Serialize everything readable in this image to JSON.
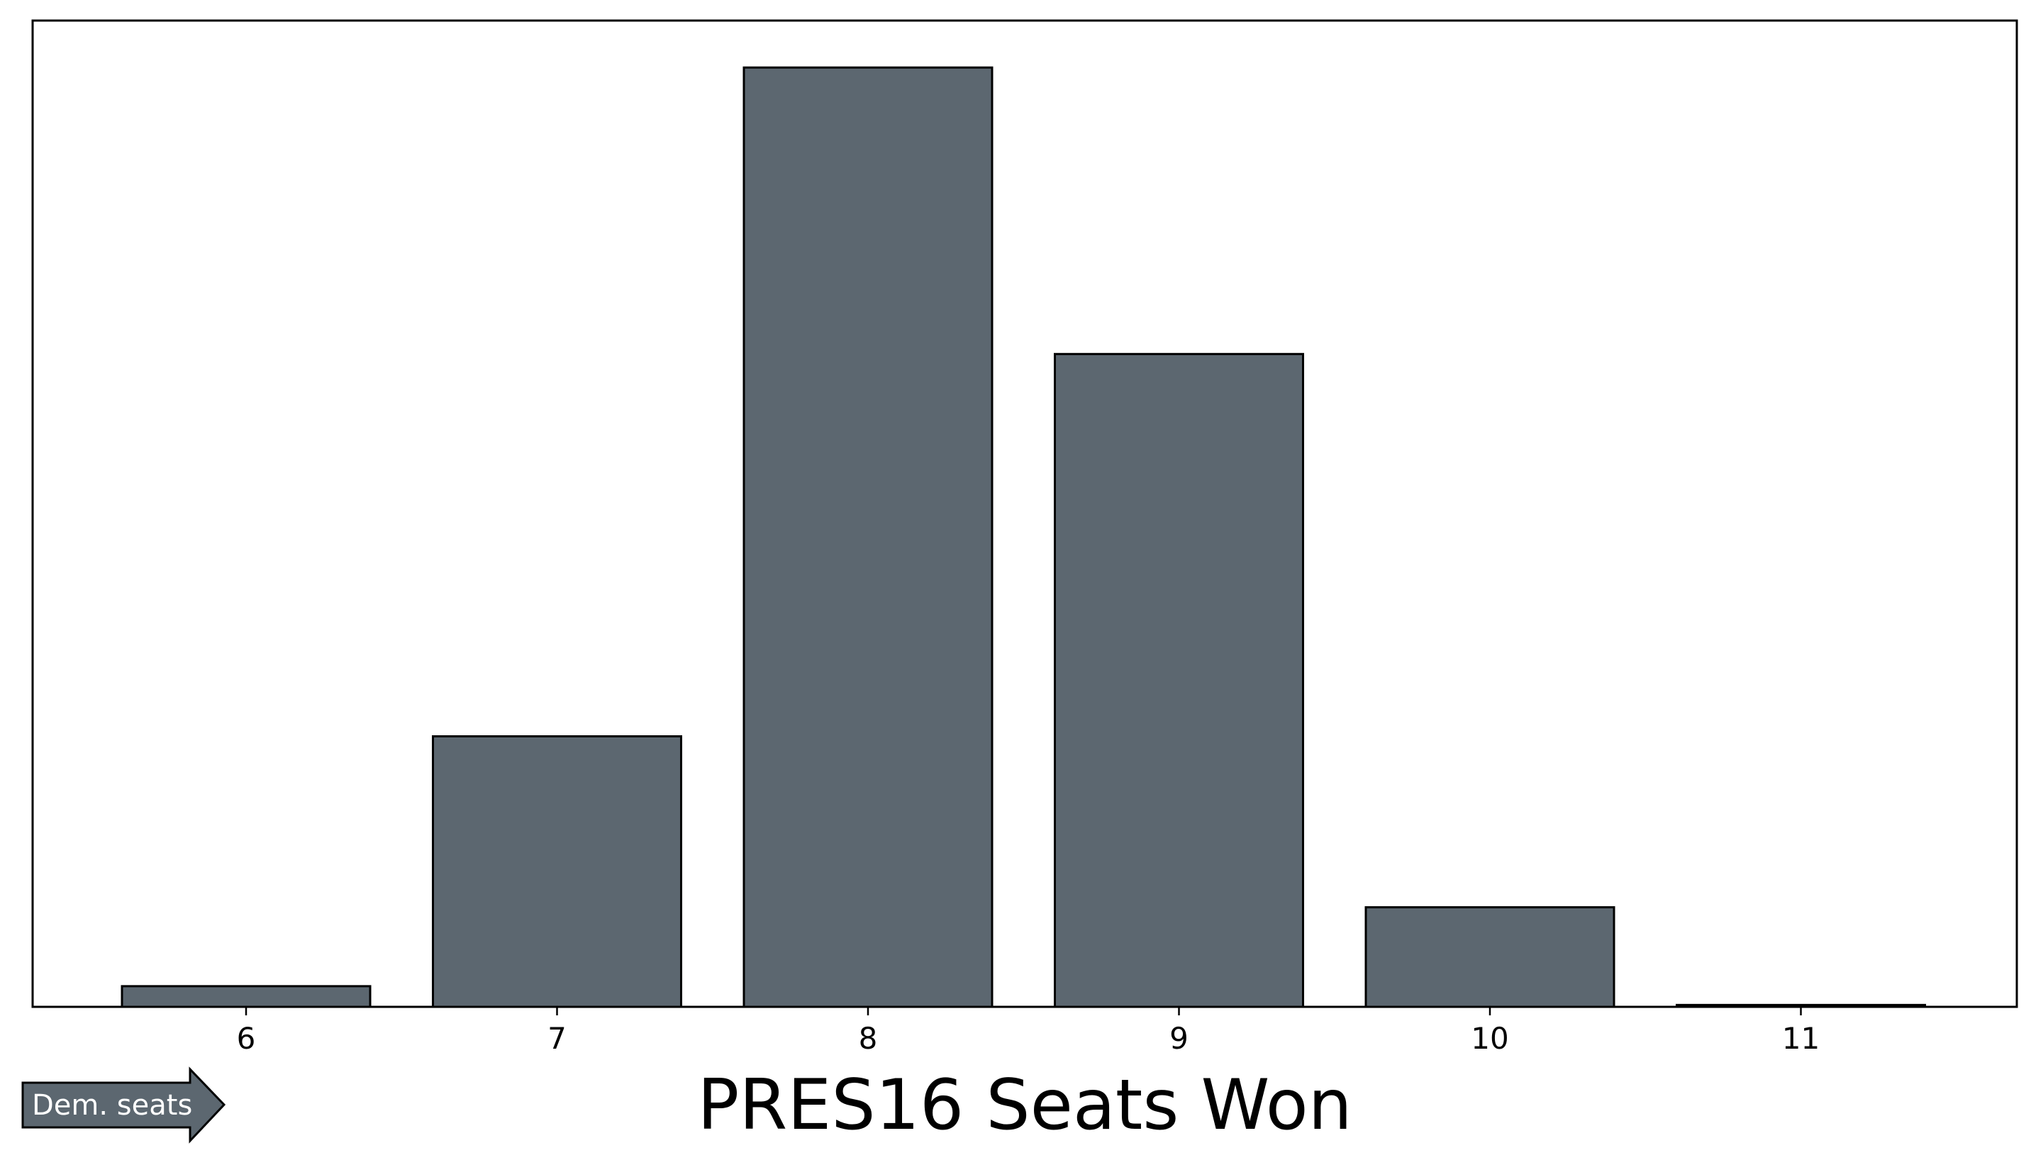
{
  "chart_data": {
    "type": "bar",
    "categories": [
      "6",
      "7",
      "8",
      "9",
      "10",
      "11"
    ],
    "values": [
      0.022,
      0.288,
      1.0,
      0.695,
      0.106,
      0.002
    ],
    "title": "",
    "xlabel": "PRES16 Seats Won",
    "ylabel": "",
    "ylim": [
      0,
      1.05
    ],
    "yticks_shown": false,
    "grid": false,
    "bar_color": "#5c6770",
    "bar_edge_color": "#000000",
    "annotation": {
      "text": "Dem. seats",
      "shape": "right-arrow",
      "color": "#5c6770"
    }
  }
}
